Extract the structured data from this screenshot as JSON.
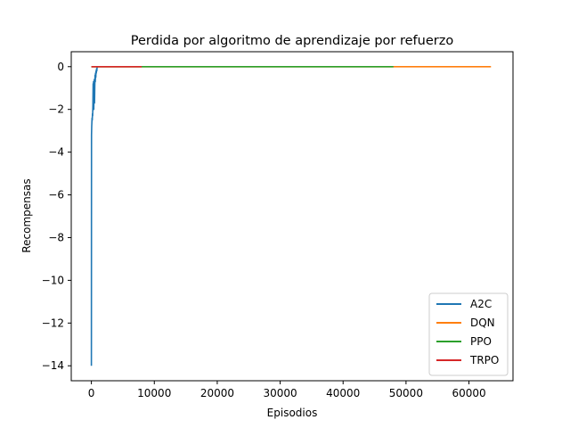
{
  "chart_data": {
    "type": "line",
    "title": "Perdida por algoritmo de aprendizaje por refuerzo",
    "xlabel": "Episodios",
    "ylabel": "Recompensas",
    "xlim": [
      -3200,
      67000
    ],
    "ylim": [
      -14.7,
      0.7
    ],
    "xticks": [
      0,
      10000,
      20000,
      30000,
      40000,
      50000,
      60000
    ],
    "yticks": [
      0,
      -2,
      -4,
      -6,
      -8,
      -10,
      -12,
      -14
    ],
    "grid": false,
    "legend": "lower-right",
    "series": [
      {
        "name": "A2C",
        "color": "#1f77b4",
        "x": [
          0,
          20,
          50,
          80,
          110,
          140,
          170,
          200,
          240,
          280,
          300,
          340,
          380,
          420,
          460,
          500,
          540,
          580,
          620,
          660,
          700,
          740,
          780,
          820,
          860,
          900,
          950,
          1000
        ],
        "y": [
          -14.0,
          -3.2,
          -2.8,
          -2.6,
          -2.4,
          -2.5,
          -2.2,
          -2.3,
          -1.8,
          -0.8,
          -1.5,
          -0.7,
          -2.0,
          -1.2,
          -0.6,
          -1.7,
          -0.9,
          -0.4,
          -0.7,
          -0.3,
          -0.5,
          -0.2,
          -0.3,
          -0.1,
          -0.2,
          -0.05,
          -0.02,
          0
        ]
      },
      {
        "name": "DQN",
        "color": "#ff7f0e",
        "x": [
          0,
          63500
        ],
        "y": [
          0,
          0
        ]
      },
      {
        "name": "PPO",
        "color": "#2ca02c",
        "x": [
          0,
          48000
        ],
        "y": [
          0,
          0
        ]
      },
      {
        "name": "TRPO",
        "color": "#d62728",
        "x": [
          0,
          8000
        ],
        "y": [
          0,
          0
        ]
      }
    ]
  }
}
